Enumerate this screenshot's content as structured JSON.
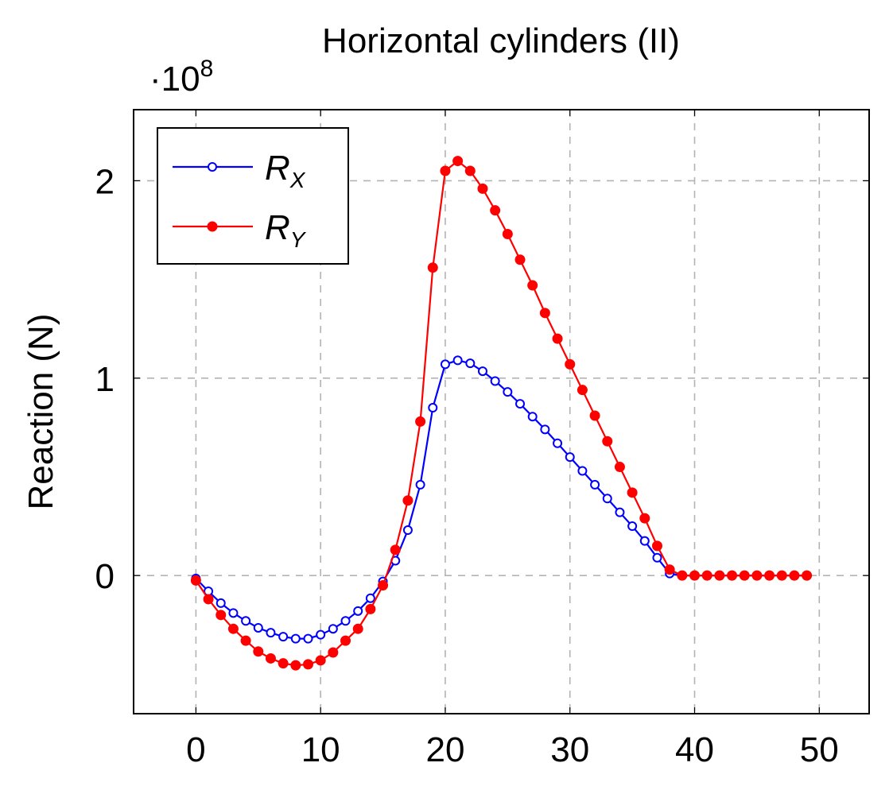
{
  "chart_data": {
    "type": "line",
    "title": "Horizontal cylinders (II)",
    "xlabel": "",
    "ylabel": "Reaction (N)",
    "y_multiplier": "·10",
    "y_multiplier_exponent": "8",
    "xlim": [
      -5,
      54
    ],
    "ylim": [
      -70000000.0,
      236000000.0
    ],
    "x_ticks": [
      0,
      10,
      20,
      30,
      40,
      50
    ],
    "y_ticks": [
      0,
      1,
      2
    ],
    "grid": true,
    "legend_position": "top-left",
    "x": [
      0,
      1,
      2,
      3,
      4,
      5,
      6,
      7,
      8,
      9,
      10,
      11,
      12,
      13,
      14,
      15,
      16,
      17,
      18,
      19,
      20,
      21,
      22,
      23,
      24,
      25,
      26,
      27,
      28,
      29,
      30,
      31,
      32,
      33,
      34,
      35,
      36,
      37,
      38,
      39,
      40,
      41,
      42,
      43,
      44,
      45,
      46,
      47,
      48,
      49
    ],
    "series": [
      {
        "name": "R",
        "subscript": "X",
        "color": "#0000ff",
        "marker": "open-circle",
        "values": [
          -1500000.0,
          -8000000.0,
          -14000000.0,
          -19000000.0,
          -23000000.0,
          -26500000.0,
          -29000000.0,
          -31000000.0,
          -32000000.0,
          -32000000.0,
          -30000000.0,
          -27000000.0,
          -23000000.0,
          -18000000.0,
          -11500000.0,
          -3000000.0,
          7500000.0,
          23000000.0,
          46000000.0,
          85000000.0,
          107000000.0,
          109000000.0,
          107500000.0,
          103500000.0,
          98500000.0,
          93000000.0,
          87000000.0,
          80500000.0,
          74000000.0,
          67000000.0,
          60000000.0,
          53000000.0,
          46000000.0,
          39000000.0,
          32000000.0,
          25000000.0,
          17500000.0,
          9000000.0,
          1000000.0,
          0,
          0,
          0,
          0,
          0,
          0,
          0,
          0,
          0,
          0,
          0
        ]
      },
      {
        "name": "R",
        "subscript": "Y",
        "color": "#ff0000",
        "marker": "filled-circle",
        "values": [
          -2500000.0,
          -12000000.0,
          -20000000.0,
          -27000000.0,
          -33000000.0,
          -38500000.0,
          -42000000.0,
          -44500000.0,
          -45500000.0,
          -45000000.0,
          -43000000.0,
          -39000000.0,
          -33000000.0,
          -27000000.0,
          -17000000.0,
          -5000000.0,
          13000000.0,
          38000000.0,
          78000000.0,
          156000000.0,
          205000000.0,
          210000000.0,
          205000000.0,
          196000000.0,
          185000000.0,
          173000000.0,
          160000000.0,
          147000000.0,
          133000000.0,
          120000000.0,
          107000000.0,
          94000000.0,
          81000000.0,
          68000000.0,
          55000000.0,
          42000000.0,
          29000000.0,
          15000000.0,
          3000000.0,
          0,
          0,
          0,
          0,
          0,
          0,
          0,
          0,
          0,
          0,
          0
        ]
      }
    ]
  }
}
